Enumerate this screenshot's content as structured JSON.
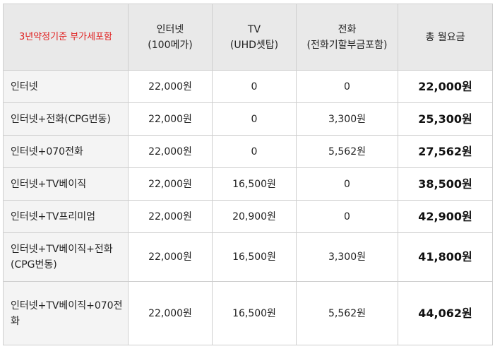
{
  "table": {
    "headers": {
      "corner": "3년약정기준 부가세포함",
      "internet": "인터넷\n(100메가)",
      "tv": "TV\n(UHD셋탑)",
      "phone": "전화\n(전화기할부금포함)",
      "total": "총 월요금"
    },
    "rows": [
      {
        "plan": "인터넷",
        "internet": "22,000원",
        "tv": "0",
        "phone": "0",
        "total": "22,000원"
      },
      {
        "plan": "인터넷+전화(CPG번동)",
        "internet": "22,000원",
        "tv": "0",
        "phone": "3,300원",
        "total": "25,300원"
      },
      {
        "plan": "인터넷+070전화",
        "internet": "22,000원",
        "tv": "0",
        "phone": "5,562원",
        "total": "27,562원"
      },
      {
        "plan": "인터넷+TV베이직",
        "internet": "22,000원",
        "tv": "16,500원",
        "phone": "0",
        "total": "38,500원"
      },
      {
        "plan": "인터넷+TV프리미엄",
        "internet": "22,000원",
        "tv": "20,900원",
        "phone": "0",
        "total": "42,900원"
      },
      {
        "plan": "인터넷+TV베이직+전화(CPG번동)",
        "internet": "22,000원",
        "tv": "16,500원",
        "phone": "3,300원",
        "total": "41,800원"
      },
      {
        "plan": "인터넷+TV베이직+070전화",
        "internet": "22,000원",
        "tv": "16,500원",
        "phone": "5,562원",
        "total": "44,062원"
      }
    ]
  },
  "colors": {
    "header_bg": "#e9e9e9",
    "plan_bg": "#f4f4f4",
    "border": "#cfcfcf",
    "corner_text": "#e02020"
  }
}
